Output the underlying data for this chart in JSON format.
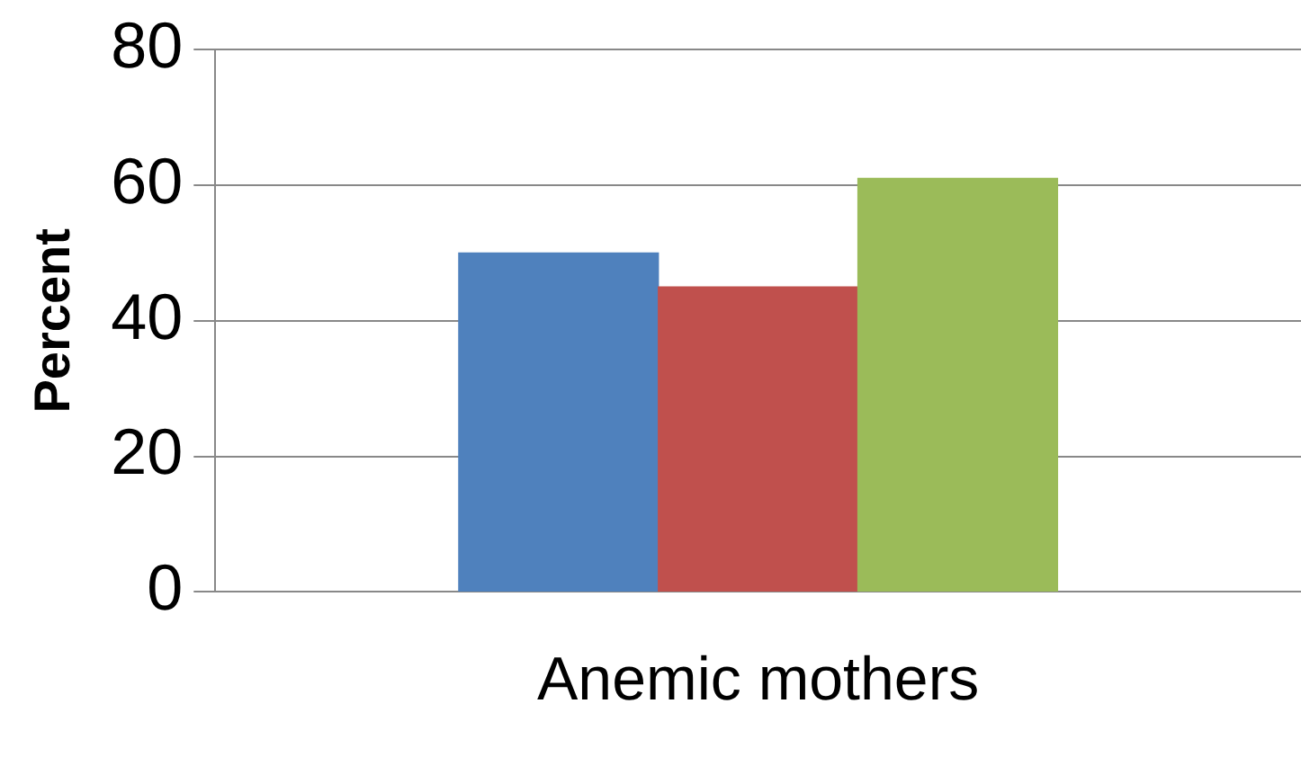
{
  "chart_data": {
    "type": "bar",
    "ylabel": "Percent",
    "categories": [
      null,
      "Anemic mothers",
      null
    ],
    "values": [
      50,
      45,
      61
    ],
    "colors": [
      "#4f81bd",
      "#c0504d",
      "#9bbb59"
    ],
    "ylim": [
      0,
      80
    ],
    "yticks": [
      0,
      20,
      40,
      60,
      80
    ],
    "grid": "y",
    "legend": false
  }
}
